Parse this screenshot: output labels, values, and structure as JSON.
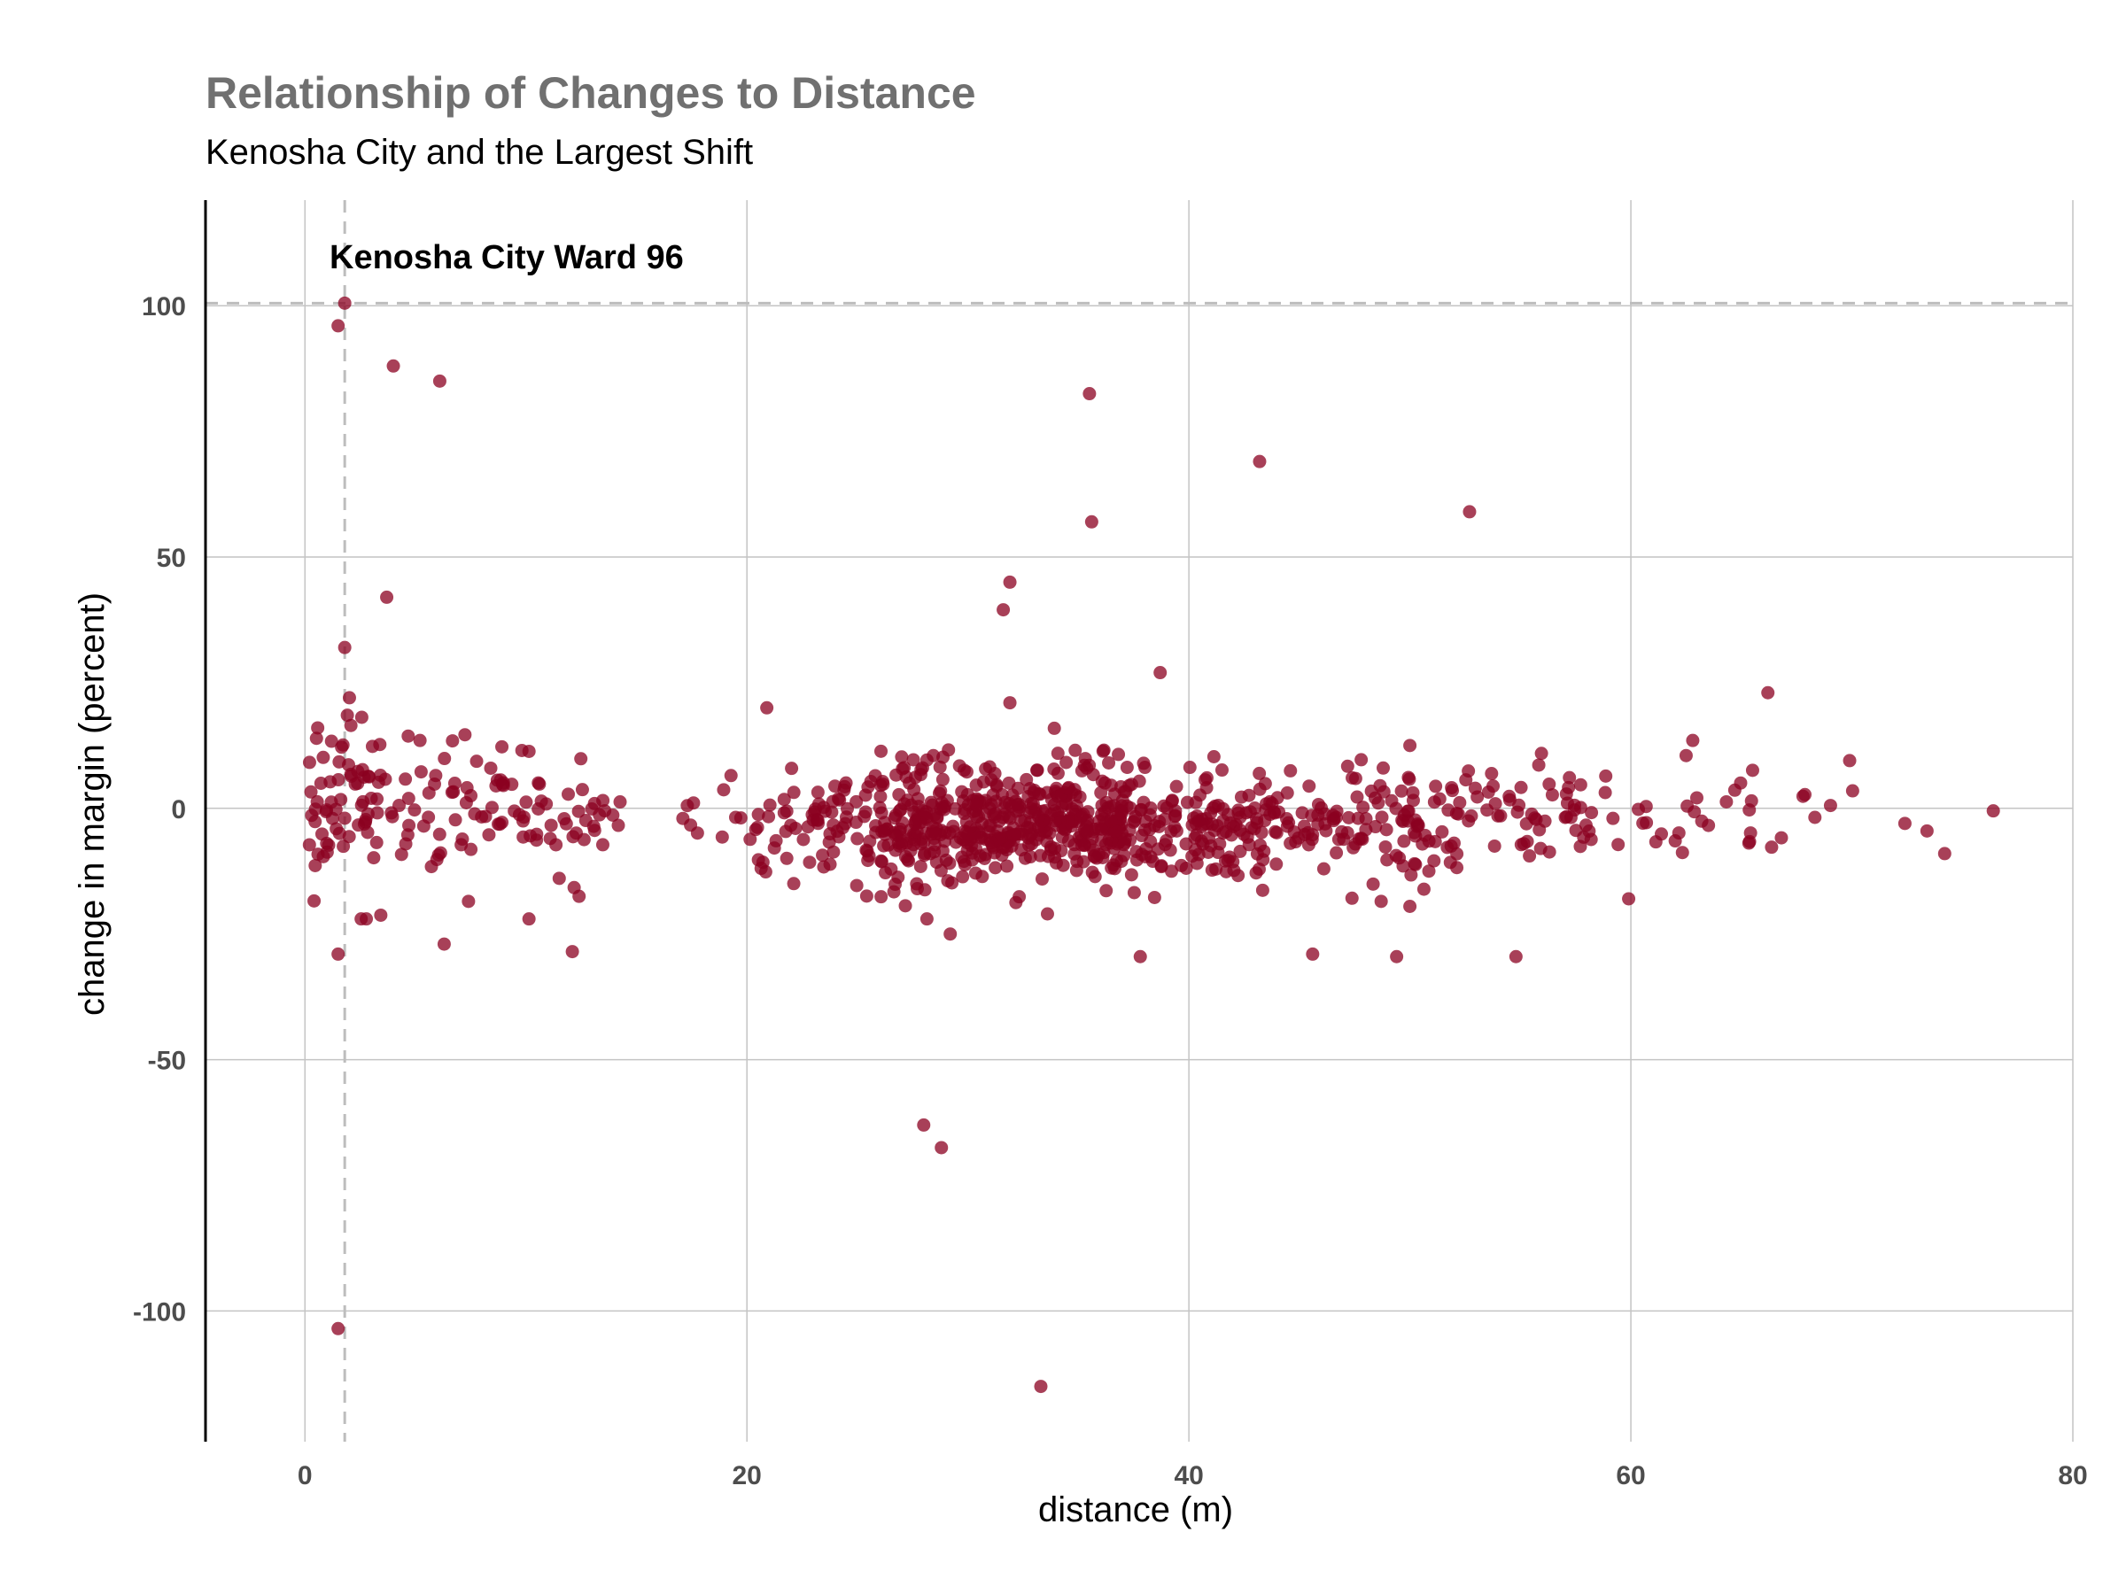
{
  "chart_data": {
    "type": "scatter",
    "title": "Relationship of Changes to Distance",
    "subtitle": "Kenosha City and the Largest Shift",
    "xlabel": "distance (m)",
    "ylabel": "change in margin (percent)",
    "xlim": [
      -4.5,
      80
    ],
    "ylim": [
      -126,
      121
    ],
    "x_ticks": [
      0,
      20,
      40,
      60,
      80
    ],
    "y_ticks": [
      100,
      50,
      0,
      -50,
      -100
    ],
    "x_tick_labels": [
      "0",
      "20",
      "40",
      "60",
      "80"
    ],
    "y_tick_labels": [
      "100",
      "50",
      "0",
      "-50",
      "-100"
    ],
    "grid": true,
    "point_color": "#8b0020",
    "reference_color": "#bdbdbd",
    "annotation": {
      "label": "Kenosha City Ward 96",
      "x": 1.8,
      "y": 100.5
    },
    "highlighted_points": [
      [
        1.8,
        100.5
      ],
      [
        1.5,
        96
      ],
      [
        4,
        88
      ],
      [
        6.1,
        85
      ],
      [
        35.5,
        82.5
      ],
      [
        43.2,
        69
      ],
      [
        52.7,
        59
      ],
      [
        35.6,
        57
      ],
      [
        31.9,
        45
      ],
      [
        31.6,
        39.5
      ],
      [
        3.7,
        42
      ],
      [
        1.8,
        32
      ],
      [
        38.7,
        27
      ],
      [
        66.2,
        23
      ],
      [
        20.9,
        20
      ],
      [
        31.9,
        21
      ],
      [
        28,
        -63
      ],
      [
        28.8,
        -67.5
      ],
      [
        1.5,
        -103.5
      ],
      [
        33.3,
        -115
      ],
      [
        6.3,
        -27
      ],
      [
        12.1,
        -28.5
      ],
      [
        1.5,
        -29
      ],
      [
        37.8,
        -29.5
      ],
      [
        45.6,
        -29
      ],
      [
        49.4,
        -29.5
      ],
      [
        54.8,
        -29.5
      ],
      [
        29.2,
        -25
      ],
      [
        33.6,
        -21
      ],
      [
        50,
        -19.5
      ],
      [
        59.9,
        -18
      ],
      [
        48.7,
        -18.5
      ],
      [
        7.4,
        -18.5
      ],
      [
        62.8,
        13.5
      ],
      [
        50,
        12.5
      ],
      [
        62.5,
        10.5
      ],
      [
        69.9,
        9.5
      ],
      [
        74.2,
        -9
      ],
      [
        76.4,
        -0.5
      ],
      [
        73.4,
        -4.5
      ],
      [
        72.4,
        -3
      ]
    ],
    "clusters": [
      {
        "x_min": 0.2,
        "x_max": 3.5,
        "y_mean": 2,
        "y_sd": 9,
        "n": 70
      },
      {
        "x_min": 3.5,
        "x_max": 13.5,
        "y_mean": 0,
        "y_sd": 7,
        "n": 95
      },
      {
        "x_min": 13.5,
        "x_max": 20,
        "y_mean": 0,
        "y_sd": 3.5,
        "n": 14
      },
      {
        "x_min": 20,
        "x_max": 26,
        "y_mean": -3,
        "y_sd": 5.5,
        "n": 75
      },
      {
        "x_min": 26,
        "x_max": 31,
        "y_mean": -3,
        "y_sd": 6.5,
        "n": 200
      },
      {
        "x_min": 31,
        "x_max": 37,
        "y_mean": -3,
        "y_sd": 5.5,
        "n": 280
      },
      {
        "x_min": 37,
        "x_max": 44,
        "y_mean": -4,
        "y_sd": 5.5,
        "n": 160
      },
      {
        "x_min": 44,
        "x_max": 52,
        "y_mean": -3,
        "y_sd": 5.5,
        "n": 110
      },
      {
        "x_min": 52,
        "x_max": 58,
        "y_mean": -1,
        "y_sd": 5,
        "n": 55
      },
      {
        "x_min": 58,
        "x_max": 67,
        "y_mean": -1,
        "y_sd": 4.5,
        "n": 32
      },
      {
        "x_min": 67,
        "x_max": 71,
        "y_mean": 1,
        "y_sd": 5,
        "n": 5
      }
    ]
  }
}
